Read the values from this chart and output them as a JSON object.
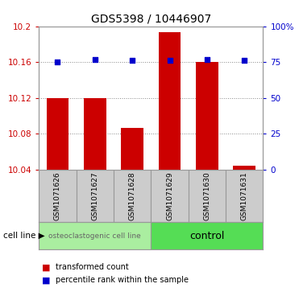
{
  "title": "GDS5398 / 10446907",
  "samples": [
    "GSM1071626",
    "GSM1071627",
    "GSM1071628",
    "GSM1071629",
    "GSM1071630",
    "GSM1071631"
  ],
  "red_values": [
    10.12,
    10.12,
    10.086,
    10.193,
    10.16,
    10.044
  ],
  "blue_values": [
    75,
    77,
    76,
    76,
    77,
    76
  ],
  "ylim_left": [
    10.04,
    10.2
  ],
  "ylim_right": [
    0,
    100
  ],
  "yticks_left": [
    10.04,
    10.08,
    10.12,
    10.16,
    10.2
  ],
  "yticks_right": [
    0,
    25,
    50,
    75,
    100
  ],
  "ytick_labels_right": [
    "0",
    "25",
    "50",
    "75",
    "100%"
  ],
  "bar_bottom": 10.04,
  "bar_width": 0.6,
  "red_color": "#cc0000",
  "blue_color": "#0000cc",
  "group1_color": "#aaeea0",
  "group2_color": "#55dd55",
  "group1_label": "osteoclastogenic cell line",
  "group2_label": "control",
  "group1_samples": [
    0,
    1,
    2
  ],
  "group2_samples": [
    3,
    4,
    5
  ],
  "cell_line_label": "cell line",
  "legend_red": "transformed count",
  "legend_blue": "percentile rank within the sample",
  "dotted_line_color": "#888888",
  "bg_color": "#ffffff",
  "sample_bg": "#cccccc",
  "title_fontsize": 10,
  "tick_fontsize": 7.5,
  "sample_fontsize": 6.5,
  "group_fontsize1": 6.5,
  "group_fontsize2": 9
}
